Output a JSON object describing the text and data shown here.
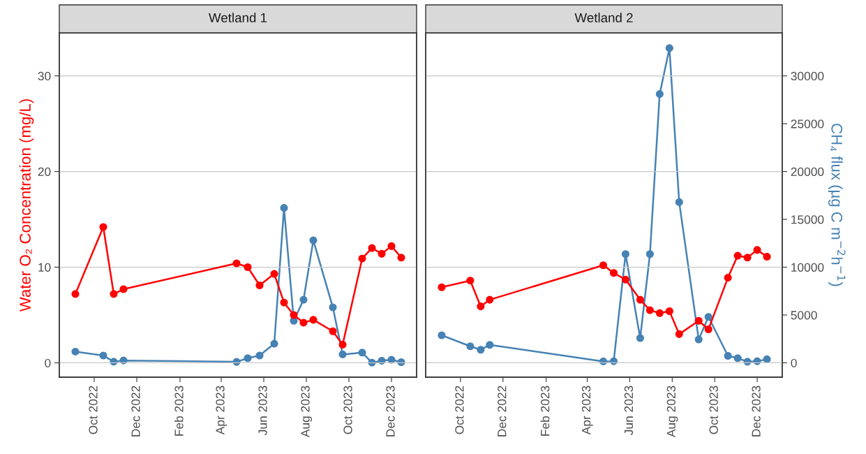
{
  "chart_data": [
    {
      "type": "line",
      "title": "Wetland 1",
      "ylabel": "Water O₂ Concentration (mg/L)",
      "xlim": [
        "2022-08-12",
        "2024-01-06"
      ],
      "xticks": [
        {
          "value": "2022-10-01",
          "label": "Oct 2022"
        },
        {
          "value": "2022-12-01",
          "label": "Dec 2022"
        },
        {
          "value": "2023-02-01",
          "label": "Feb 2023"
        },
        {
          "value": "2023-04-01",
          "label": "Apr 2023"
        },
        {
          "value": "2023-06-01",
          "label": "Jun 2023"
        },
        {
          "value": "2023-08-01",
          "label": "Aug 2023"
        },
        {
          "value": "2023-10-01",
          "label": "Oct 2023"
        },
        {
          "value": "2023-12-01",
          "label": "Dec 2023"
        }
      ],
      "ylim": [
        -1.5,
        34.5
      ],
      "yticks": [
        0,
        10,
        20,
        30
      ],
      "y2lim": [
        -1500,
        34500
      ],
      "grid": "y",
      "marker": "circle",
      "line_style": "solid",
      "legend": false,
      "x": [
        "2022-09-04",
        "2022-10-14",
        "2022-10-29",
        "2022-11-12",
        "2023-04-23",
        "2023-05-09",
        "2023-05-26",
        "2023-06-16",
        "2023-06-30",
        "2023-07-14",
        "2023-07-28",
        "2023-08-11",
        "2023-09-08",
        "2023-09-22",
        "2023-10-20",
        "2023-11-03",
        "2023-11-17",
        "2023-12-01",
        "2023-12-15"
      ],
      "series": [
        {
          "color": "#ff0000",
          "values": [
            7.2,
            14.2,
            7.2,
            7.7,
            10.4,
            10.0,
            8.1,
            9.3,
            6.3,
            5.0,
            4.2,
            4.5,
            3.3,
            1.9,
            10.9,
            12.0,
            11.4,
            12.2,
            11.0
          ]
        },
        {
          "color": "#4682b4",
          "axis": "y2",
          "values": [
            1170,
            760,
            120,
            240,
            100,
            490,
            760,
            2000,
            16200,
            4400,
            6600,
            12800,
            5800,
            880,
            1070,
            20,
            220,
            320,
            70
          ]
        }
      ]
    },
    {
      "type": "line",
      "title": "Wetland 2",
      "y2label": "CH₄ flux (µg C m$^{−2}$h$^{−1}$)",
      "xlim": [
        "2022-08-12",
        "2024-01-06"
      ],
      "xticks": [
        {
          "value": "2022-10-01",
          "label": "Oct 2022"
        },
        {
          "value": "2022-12-01",
          "label": "Dec 2022"
        },
        {
          "value": "2023-02-01",
          "label": "Feb 2023"
        },
        {
          "value": "2023-04-01",
          "label": "Apr 2023"
        },
        {
          "value": "2023-06-01",
          "label": "Jun 2023"
        },
        {
          "value": "2023-08-01",
          "label": "Aug 2023"
        },
        {
          "value": "2023-10-01",
          "label": "Oct 2023"
        },
        {
          "value": "2023-12-01",
          "label": "Dec 2023"
        }
      ],
      "ylim": [
        -1.5,
        34.5
      ],
      "y2lim": [
        -1500,
        34500
      ],
      "y2ticks": [
        0,
        5000,
        10000,
        15000,
        20000,
        25000,
        30000
      ],
      "grid": "y",
      "marker": "circle",
      "line_style": "solid",
      "legend": false,
      "x": [
        "2022-09-04",
        "2022-10-15",
        "2022-10-30",
        "2022-11-12",
        "2023-04-24",
        "2023-05-09",
        "2023-05-26",
        "2023-06-16",
        "2023-06-30",
        "2023-07-14",
        "2023-07-28",
        "2023-08-11",
        "2023-09-08",
        "2023-09-22",
        "2023-10-20",
        "2023-11-03",
        "2023-11-17",
        "2023-12-01",
        "2023-12-15"
      ],
      "series": [
        {
          "color": "#ff0000",
          "values": [
            7.9,
            8.6,
            5.9,
            6.6,
            10.2,
            9.4,
            8.7,
            6.6,
            5.5,
            5.2,
            5.4,
            3.0,
            4.4,
            3.5,
            8.9,
            11.2,
            11.0,
            11.8,
            11.1
          ]
        },
        {
          "color": "#4682b4",
          "axis": "y2",
          "values": [
            2880,
            1730,
            1370,
            1880,
            150,
            170,
            11370,
            2590,
            11370,
            28100,
            32900,
            16800,
            2440,
            4800,
            730,
            490,
            120,
            170,
            370
          ]
        }
      ]
    }
  ]
}
